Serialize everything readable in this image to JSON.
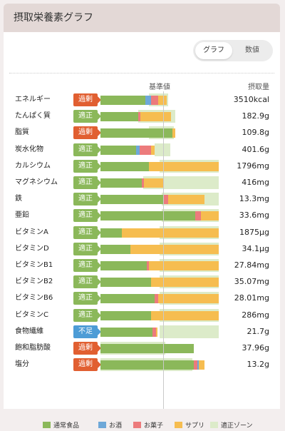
{
  "header": {
    "title": "摂取栄養素グラフ"
  },
  "view_toggle": {
    "graph_label": "グラフ",
    "numbers_label": "数値"
  },
  "columns": {
    "reference": "基準値",
    "intake": "摂取量"
  },
  "colors": {
    "food": "#8bb85a",
    "alcohol": "#6ea8d8",
    "snacks": "#ec7b7c",
    "supplement": "#f6bd50",
    "zone": "#dcebc9",
    "over": "#e15f31",
    "ok": "#8bb85a",
    "low": "#4d9cd6"
  },
  "status_labels": {
    "over": "過剰",
    "ok": "適正",
    "low": "不足"
  },
  "nutrients": [
    {
      "name": "エネルギー",
      "status": "over",
      "value": "3510kcal",
      "zone": [
        0.41,
        0.57
      ],
      "segments": [
        [
          "food",
          0.38
        ],
        [
          "alcohol",
          0.05
        ],
        [
          "snacks",
          0.06
        ],
        [
          "supplement",
          0.07
        ]
      ]
    },
    {
      "name": "たんぱく質",
      "status": "ok",
      "value": "182.9g",
      "zone": [
        0.32,
        0.63
      ],
      "segments": [
        [
          "food",
          0.32
        ],
        [
          "snacks",
          0.015
        ],
        [
          "supplement",
          0.26
        ]
      ]
    },
    {
      "name": "脂質",
      "status": "over",
      "value": "109.8g",
      "zone": [
        0.41,
        0.62
      ],
      "segments": [
        [
          "food",
          0.61
        ],
        [
          "supplement",
          0.02
        ]
      ]
    },
    {
      "name": "炭水化物",
      "status": "ok",
      "value": "401.6g",
      "zone": [
        0.46,
        0.59
      ],
      "segments": [
        [
          "food",
          0.3
        ],
        [
          "alcohol",
          0.03
        ],
        [
          "snacks",
          0.1
        ],
        [
          "supplement",
          0.03
        ]
      ]
    },
    {
      "name": "カルシウム",
      "status": "ok",
      "value": "1796mg",
      "zone": [
        0.5,
        1.0
      ],
      "segments": [
        [
          "food",
          0.41
        ],
        [
          "supplement",
          0.59
        ]
      ]
    },
    {
      "name": "マグネシウム",
      "status": "ok",
      "value": "416mg",
      "zone": [
        0.36,
        1.0
      ],
      "segments": [
        [
          "food",
          0.35
        ],
        [
          "snacks",
          0.02
        ],
        [
          "supplement",
          0.16
        ]
      ]
    },
    {
      "name": "鉄",
      "status": "ok",
      "value": "13.3mg",
      "zone": [
        0.52,
        1.0
      ],
      "segments": [
        [
          "food",
          0.53
        ],
        [
          "snacks",
          0.04
        ],
        [
          "supplement",
          0.31
        ]
      ]
    },
    {
      "name": "亜鉛",
      "status": "ok",
      "value": "33.6mg",
      "zone": [
        0.52,
        1.0
      ],
      "segments": [
        [
          "food",
          0.8
        ],
        [
          "snacks",
          0.05
        ],
        [
          "supplement",
          0.15
        ]
      ]
    },
    {
      "name": "ビタミンA",
      "status": "ok",
      "value": "1875μg",
      "zone": [
        0.5,
        1.0
      ],
      "segments": [
        [
          "food",
          0.18
        ],
        [
          "supplement",
          0.82
        ]
      ]
    },
    {
      "name": "ビタミンD",
      "status": "ok",
      "value": "34.1μg",
      "zone": [
        0.5,
        1.0
      ],
      "segments": [
        [
          "food",
          0.25
        ],
        [
          "supplement",
          0.75
        ]
      ]
    },
    {
      "name": "ビタミンB1",
      "status": "ok",
      "value": "27.84mg",
      "zone": [
        0.5,
        1.0
      ],
      "segments": [
        [
          "food",
          0.39
        ],
        [
          "snacks",
          0.02
        ],
        [
          "supplement",
          0.59
        ]
      ]
    },
    {
      "name": "ビタミンB2",
      "status": "ok",
      "value": "35.07mg",
      "zone": [
        0.5,
        1.0
      ],
      "segments": [
        [
          "food",
          0.43
        ],
        [
          "supplement",
          0.57
        ]
      ]
    },
    {
      "name": "ビタミンB6",
      "status": "ok",
      "value": "28.01mg",
      "zone": [
        0.5,
        1.0
      ],
      "segments": [
        [
          "food",
          0.46
        ],
        [
          "snacks",
          0.03
        ],
        [
          "supplement",
          0.51
        ]
      ]
    },
    {
      "name": "ビタミンC",
      "status": "ok",
      "value": "286mg",
      "zone": [
        0.5,
        1.0
      ],
      "segments": [
        [
          "food",
          0.43
        ],
        [
          "supplement",
          0.57
        ]
      ]
    },
    {
      "name": "食物繊維",
      "status": "low",
      "value": "21.7g",
      "zone": [
        0.5,
        1.0
      ],
      "segments": [
        [
          "food",
          0.44
        ],
        [
          "snacks",
          0.03
        ],
        [
          "supplement",
          0.01
        ]
      ]
    },
    {
      "name": "飽和脂肪酸",
      "status": "over",
      "value": "37.96g",
      "zone": [
        0.0,
        0.55
      ],
      "segments": [
        [
          "food",
          0.79
        ]
      ]
    },
    {
      "name": "塩分",
      "status": "over",
      "value": "13.2g",
      "zone": [
        0.0,
        0.78
      ],
      "segments": [
        [
          "food",
          0.79
        ],
        [
          "snacks",
          0.03
        ],
        [
          "alcohol",
          0.01
        ],
        [
          "supplement",
          0.05
        ]
      ]
    }
  ],
  "legend": [
    {
      "key": "food",
      "label": "通常食品"
    },
    {
      "key": "alcohol",
      "label": "お酒"
    },
    {
      "key": "snacks",
      "label": "お菓子"
    },
    {
      "key": "supplement",
      "label": "サプリ"
    },
    {
      "key": "zone",
      "label": "適正ゾーン"
    }
  ]
}
